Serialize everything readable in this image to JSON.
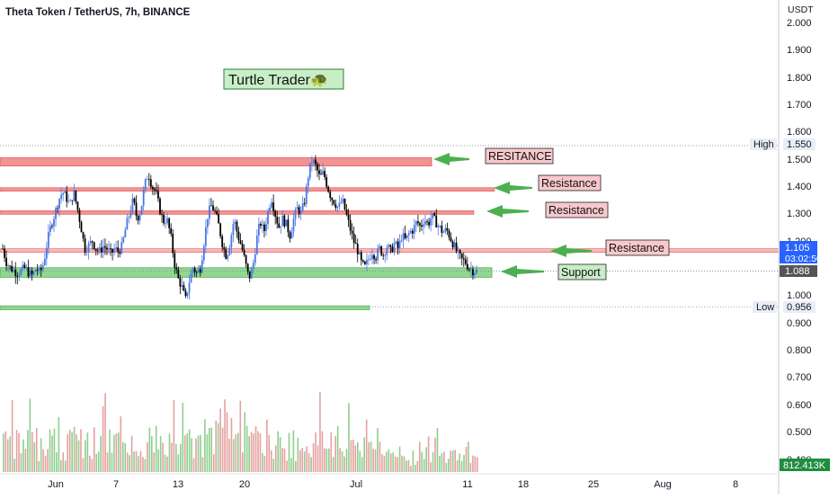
{
  "header": {
    "symbol_title": "Theta Token / TetherUS, 7h, BINANCE"
  },
  "watermark": {
    "label": "Turtle Trader🐢"
  },
  "colors": {
    "up_candle": "#4a78e6",
    "down_candle": "#000000",
    "resistance_band": "#f08080",
    "support_band": "#7fcf7f",
    "arrow": "#4caf50",
    "resistance_label_bg": "#f8c8cc",
    "support_label_bg": "#c8eec8",
    "volume_up": "#8fcf8f",
    "volume_down": "#e6a0a0",
    "price_tag_current": "#2962ff",
    "price_tag_close": "#555555",
    "volume_tag": "#1e8e3e"
  },
  "price_axis": {
    "unit": "USDT",
    "ticks": [
      "2.000",
      "1.900",
      "1.800",
      "1.700",
      "1.600",
      "1.500",
      "1.400",
      "1.300",
      "1.200",
      "1.000",
      "0.900",
      "0.800",
      "0.700",
      "0.600",
      "0.500",
      "0.400"
    ],
    "high_label": "High",
    "high_value": "1.550",
    "low_label": "Low",
    "low_value": "0.956",
    "current_price": "1.105",
    "countdown": "03:02:50",
    "close_price": "1.088",
    "volume_value": "812.413K"
  },
  "time_axis": {
    "labels": [
      "Jun",
      "7",
      "13",
      "20",
      "Jul",
      "11",
      "18",
      "25",
      "Aug",
      "8"
    ]
  },
  "annotations": [
    {
      "text": "RESITANCE",
      "kind": "resistance",
      "level": 1.49
    },
    {
      "text": "Resistance",
      "kind": "resistance",
      "level": 1.39
    },
    {
      "text": "Resistance",
      "kind": "resistance",
      "level": 1.305
    },
    {
      "text": "Resistance",
      "kind": "resistance",
      "level": 1.165
    },
    {
      "text": "Support",
      "kind": "support",
      "level": 1.085
    }
  ],
  "chart_data": {
    "type": "candlestick",
    "title": "Theta Token / TetherUS, 7h, BINANCE",
    "ylabel": "USDT",
    "ylim": [
      0.4,
      2.0
    ],
    "high": 1.55,
    "low": 0.956,
    "last": 1.088,
    "zones": [
      {
        "label": "RESITANCE",
        "type": "resistance",
        "low": 1.475,
        "high": 1.505
      },
      {
        "label": "Resistance",
        "type": "resistance",
        "low": 1.385,
        "high": 1.395
      },
      {
        "label": "Resistance",
        "type": "resistance",
        "low": 1.298,
        "high": 1.31
      },
      {
        "label": "Resistance",
        "type": "resistance",
        "low": 1.16,
        "high": 1.17
      },
      {
        "label": "Support",
        "type": "support",
        "low": 1.065,
        "high": 1.1
      },
      {
        "label": "",
        "type": "support",
        "low": 0.945,
        "high": 0.96
      }
    ],
    "close_path": [
      1.17,
      1.12,
      1.1,
      1.09,
      1.08,
      1.09,
      1.1,
      1.08,
      1.07,
      1.1,
      1.08,
      1.12,
      1.2,
      1.26,
      1.3,
      1.35,
      1.38,
      1.36,
      1.33,
      1.38,
      1.32,
      1.25,
      1.17,
      1.18,
      1.2,
      1.17,
      1.16,
      1.18,
      1.17,
      1.15,
      1.17,
      1.16,
      1.18,
      1.25,
      1.3,
      1.35,
      1.28,
      1.31,
      1.4,
      1.45,
      1.4,
      1.38,
      1.32,
      1.27,
      1.28,
      1.22,
      1.12,
      1.06,
      1.03,
      0.98,
      1.05,
      1.1,
      1.08,
      1.1,
      1.2,
      1.3,
      1.33,
      1.3,
      1.25,
      1.18,
      1.14,
      1.2,
      1.28,
      1.22,
      1.18,
      1.12,
      1.06,
      1.1,
      1.2,
      1.27,
      1.23,
      1.3,
      1.36,
      1.3,
      1.25,
      1.28,
      1.26,
      1.22,
      1.28,
      1.32,
      1.3,
      1.35,
      1.45,
      1.5,
      1.47,
      1.43,
      1.45,
      1.4,
      1.36,
      1.34,
      1.32,
      1.35,
      1.3,
      1.25,
      1.2,
      1.17,
      1.12,
      1.1,
      1.13,
      1.16,
      1.14,
      1.17,
      1.15,
      1.18,
      1.16,
      1.19,
      1.17,
      1.22,
      1.2,
      1.23,
      1.24,
      1.27,
      1.25,
      1.28,
      1.26,
      1.29,
      1.27,
      1.25,
      1.23,
      1.24,
      1.21,
      1.18,
      1.15,
      1.13,
      1.12,
      1.1,
      1.09,
      1.088
    ]
  }
}
